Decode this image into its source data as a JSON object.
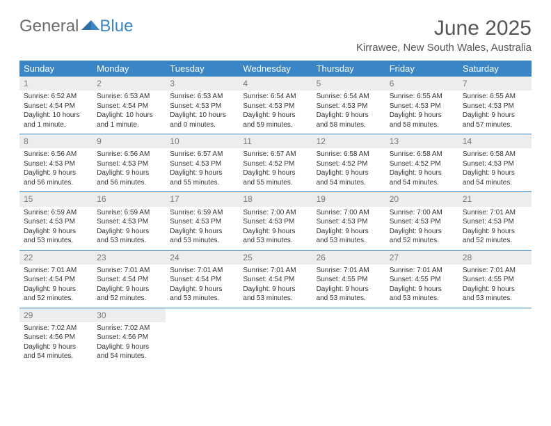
{
  "logo": {
    "word1": "General",
    "word2": "Blue"
  },
  "title": "June 2025",
  "location": "Kirrawee, New South Wales, Australia",
  "colors": {
    "brand_blue": "#3a85c5",
    "daynum_bg": "#eceded",
    "text_gray": "#6b6b6b",
    "body_text": "#333333",
    "background": "#ffffff"
  },
  "weekdays": [
    "Sunday",
    "Monday",
    "Tuesday",
    "Wednesday",
    "Thursday",
    "Friday",
    "Saturday"
  ],
  "weeks": [
    [
      {
        "n": "1",
        "sr": "Sunrise: 6:52 AM",
        "ss": "Sunset: 4:54 PM",
        "d1": "Daylight: 10 hours",
        "d2": "and 1 minute."
      },
      {
        "n": "2",
        "sr": "Sunrise: 6:53 AM",
        "ss": "Sunset: 4:54 PM",
        "d1": "Daylight: 10 hours",
        "d2": "and 1 minute."
      },
      {
        "n": "3",
        "sr": "Sunrise: 6:53 AM",
        "ss": "Sunset: 4:53 PM",
        "d1": "Daylight: 10 hours",
        "d2": "and 0 minutes."
      },
      {
        "n": "4",
        "sr": "Sunrise: 6:54 AM",
        "ss": "Sunset: 4:53 PM",
        "d1": "Daylight: 9 hours",
        "d2": "and 59 minutes."
      },
      {
        "n": "5",
        "sr": "Sunrise: 6:54 AM",
        "ss": "Sunset: 4:53 PM",
        "d1": "Daylight: 9 hours",
        "d2": "and 58 minutes."
      },
      {
        "n": "6",
        "sr": "Sunrise: 6:55 AM",
        "ss": "Sunset: 4:53 PM",
        "d1": "Daylight: 9 hours",
        "d2": "and 58 minutes."
      },
      {
        "n": "7",
        "sr": "Sunrise: 6:55 AM",
        "ss": "Sunset: 4:53 PM",
        "d1": "Daylight: 9 hours",
        "d2": "and 57 minutes."
      }
    ],
    [
      {
        "n": "8",
        "sr": "Sunrise: 6:56 AM",
        "ss": "Sunset: 4:53 PM",
        "d1": "Daylight: 9 hours",
        "d2": "and 56 minutes."
      },
      {
        "n": "9",
        "sr": "Sunrise: 6:56 AM",
        "ss": "Sunset: 4:53 PM",
        "d1": "Daylight: 9 hours",
        "d2": "and 56 minutes."
      },
      {
        "n": "10",
        "sr": "Sunrise: 6:57 AM",
        "ss": "Sunset: 4:53 PM",
        "d1": "Daylight: 9 hours",
        "d2": "and 55 minutes."
      },
      {
        "n": "11",
        "sr": "Sunrise: 6:57 AM",
        "ss": "Sunset: 4:52 PM",
        "d1": "Daylight: 9 hours",
        "d2": "and 55 minutes."
      },
      {
        "n": "12",
        "sr": "Sunrise: 6:58 AM",
        "ss": "Sunset: 4:52 PM",
        "d1": "Daylight: 9 hours",
        "d2": "and 54 minutes."
      },
      {
        "n": "13",
        "sr": "Sunrise: 6:58 AM",
        "ss": "Sunset: 4:52 PM",
        "d1": "Daylight: 9 hours",
        "d2": "and 54 minutes."
      },
      {
        "n": "14",
        "sr": "Sunrise: 6:58 AM",
        "ss": "Sunset: 4:53 PM",
        "d1": "Daylight: 9 hours",
        "d2": "and 54 minutes."
      }
    ],
    [
      {
        "n": "15",
        "sr": "Sunrise: 6:59 AM",
        "ss": "Sunset: 4:53 PM",
        "d1": "Daylight: 9 hours",
        "d2": "and 53 minutes."
      },
      {
        "n": "16",
        "sr": "Sunrise: 6:59 AM",
        "ss": "Sunset: 4:53 PM",
        "d1": "Daylight: 9 hours",
        "d2": "and 53 minutes."
      },
      {
        "n": "17",
        "sr": "Sunrise: 6:59 AM",
        "ss": "Sunset: 4:53 PM",
        "d1": "Daylight: 9 hours",
        "d2": "and 53 minutes."
      },
      {
        "n": "18",
        "sr": "Sunrise: 7:00 AM",
        "ss": "Sunset: 4:53 PM",
        "d1": "Daylight: 9 hours",
        "d2": "and 53 minutes."
      },
      {
        "n": "19",
        "sr": "Sunrise: 7:00 AM",
        "ss": "Sunset: 4:53 PM",
        "d1": "Daylight: 9 hours",
        "d2": "and 53 minutes."
      },
      {
        "n": "20",
        "sr": "Sunrise: 7:00 AM",
        "ss": "Sunset: 4:53 PM",
        "d1": "Daylight: 9 hours",
        "d2": "and 52 minutes."
      },
      {
        "n": "21",
        "sr": "Sunrise: 7:01 AM",
        "ss": "Sunset: 4:53 PM",
        "d1": "Daylight: 9 hours",
        "d2": "and 52 minutes."
      }
    ],
    [
      {
        "n": "22",
        "sr": "Sunrise: 7:01 AM",
        "ss": "Sunset: 4:54 PM",
        "d1": "Daylight: 9 hours",
        "d2": "and 52 minutes."
      },
      {
        "n": "23",
        "sr": "Sunrise: 7:01 AM",
        "ss": "Sunset: 4:54 PM",
        "d1": "Daylight: 9 hours",
        "d2": "and 52 minutes."
      },
      {
        "n": "24",
        "sr": "Sunrise: 7:01 AM",
        "ss": "Sunset: 4:54 PM",
        "d1": "Daylight: 9 hours",
        "d2": "and 53 minutes."
      },
      {
        "n": "25",
        "sr": "Sunrise: 7:01 AM",
        "ss": "Sunset: 4:54 PM",
        "d1": "Daylight: 9 hours",
        "d2": "and 53 minutes."
      },
      {
        "n": "26",
        "sr": "Sunrise: 7:01 AM",
        "ss": "Sunset: 4:55 PM",
        "d1": "Daylight: 9 hours",
        "d2": "and 53 minutes."
      },
      {
        "n": "27",
        "sr": "Sunrise: 7:01 AM",
        "ss": "Sunset: 4:55 PM",
        "d1": "Daylight: 9 hours",
        "d2": "and 53 minutes."
      },
      {
        "n": "28",
        "sr": "Sunrise: 7:01 AM",
        "ss": "Sunset: 4:55 PM",
        "d1": "Daylight: 9 hours",
        "d2": "and 53 minutes."
      }
    ],
    [
      {
        "n": "29",
        "sr": "Sunrise: 7:02 AM",
        "ss": "Sunset: 4:56 PM",
        "d1": "Daylight: 9 hours",
        "d2": "and 54 minutes."
      },
      {
        "n": "30",
        "sr": "Sunrise: 7:02 AM",
        "ss": "Sunset: 4:56 PM",
        "d1": "Daylight: 9 hours",
        "d2": "and 54 minutes."
      },
      {
        "n": "",
        "sr": "",
        "ss": "",
        "d1": "",
        "d2": "",
        "empty": true
      },
      {
        "n": "",
        "sr": "",
        "ss": "",
        "d1": "",
        "d2": "",
        "empty": true
      },
      {
        "n": "",
        "sr": "",
        "ss": "",
        "d1": "",
        "d2": "",
        "empty": true
      },
      {
        "n": "",
        "sr": "",
        "ss": "",
        "d1": "",
        "d2": "",
        "empty": true
      },
      {
        "n": "",
        "sr": "",
        "ss": "",
        "d1": "",
        "d2": "",
        "empty": true
      }
    ]
  ]
}
